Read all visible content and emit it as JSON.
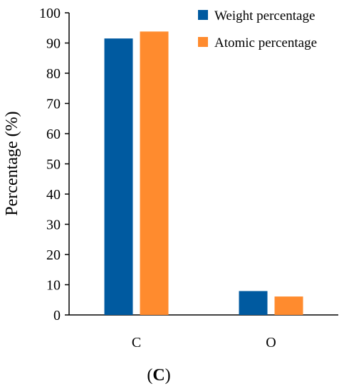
{
  "chart_data": {
    "type": "bar",
    "title": "",
    "xlabel": "",
    "ylabel": "Percentage (%)",
    "categories": [
      "C",
      "O"
    ],
    "series": [
      {
        "name": "Weight percentage",
        "color": "#005AA0",
        "values": [
          91.5,
          7.9
        ]
      },
      {
        "name": "Atomic percentage",
        "color": "#FF8B2E",
        "values": [
          93.8,
          6.1
        ]
      }
    ],
    "ylim": [
      0,
      100
    ],
    "yticks": [
      "0",
      "10",
      "20",
      "30",
      "40",
      "50",
      "60",
      "70",
      "80",
      "90",
      "100"
    ],
    "grid": false,
    "legend_position": "top-right"
  },
  "caption": {
    "open": "(",
    "letter": "C",
    "close": ")"
  }
}
